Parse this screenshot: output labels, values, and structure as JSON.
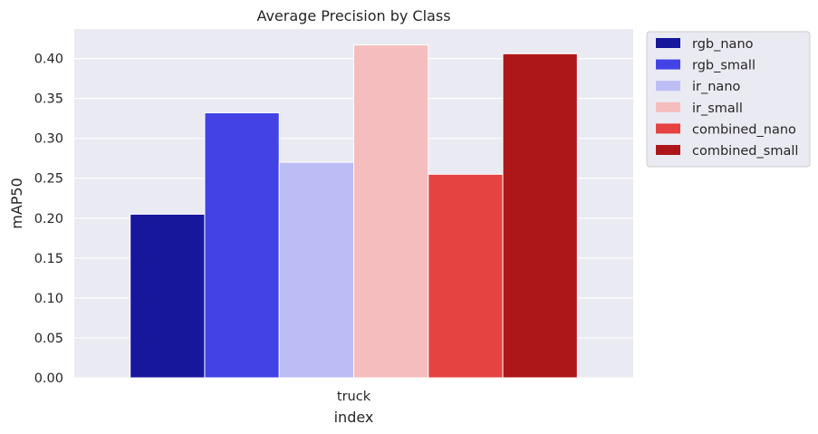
{
  "chart_data": {
    "type": "bar",
    "title": "Average Precision by Class",
    "xlabel": "index",
    "ylabel": "mAP50",
    "categories": [
      "truck"
    ],
    "ylim": [
      0,
      0.437
    ],
    "yticks": [
      "0.00",
      "0.05",
      "0.10",
      "0.15",
      "0.20",
      "0.25",
      "0.30",
      "0.35",
      "0.40"
    ],
    "grid": true,
    "legend_position": "outside-top-right",
    "series": [
      {
        "name": "rgb_nano",
        "values": [
          0.205
        ],
        "color": "#17179c"
      },
      {
        "name": "rgb_small",
        "values": [
          0.332
        ],
        "color": "#4343e5"
      },
      {
        "name": "ir_nano",
        "values": [
          0.27
        ],
        "color": "#bdbdf5"
      },
      {
        "name": "ir_small",
        "values": [
          0.417
        ],
        "color": "#f5bdbd"
      },
      {
        "name": "combined_nano",
        "values": [
          0.255
        ],
        "color": "#e54242"
      },
      {
        "name": "combined_small",
        "values": [
          0.406
        ],
        "color": "#ad171a"
      }
    ]
  }
}
